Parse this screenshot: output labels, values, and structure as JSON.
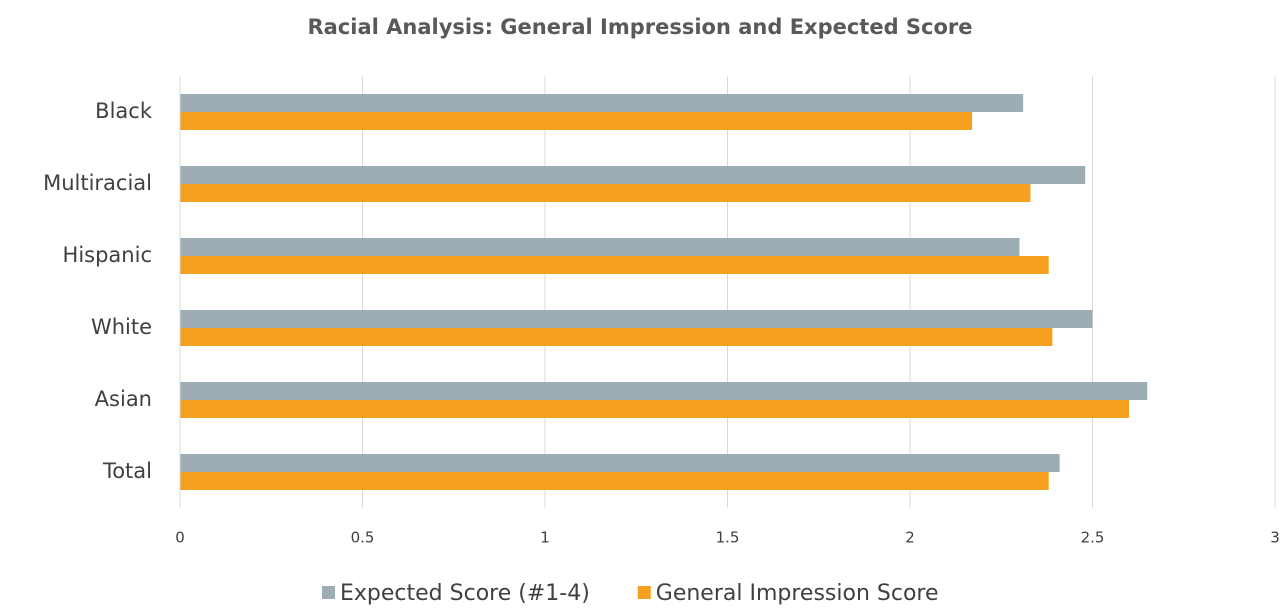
{
  "chart_data": {
    "type": "hbar",
    "title": "Racial Analysis: General Impression and Expected Score",
    "categories": [
      "Black",
      "Multiracial",
      "Hispanic",
      "White",
      "Asian",
      "Total"
    ],
    "series": [
      {
        "name": "Expected Score (#1-4)",
        "color": "#9eadb3",
        "values": [
          2.31,
          2.48,
          2.3,
          2.5,
          2.65,
          2.41
        ]
      },
      {
        "name": "General Impression Score",
        "color": "#f5a01f",
        "values": [
          2.17,
          2.33,
          2.38,
          2.39,
          2.6,
          2.38
        ]
      }
    ],
    "xlim": [
      0,
      3
    ],
    "xticks": [
      0,
      0.5,
      1,
      1.5,
      2,
      2.5,
      3
    ],
    "grid": true,
    "legend": "bottom"
  }
}
